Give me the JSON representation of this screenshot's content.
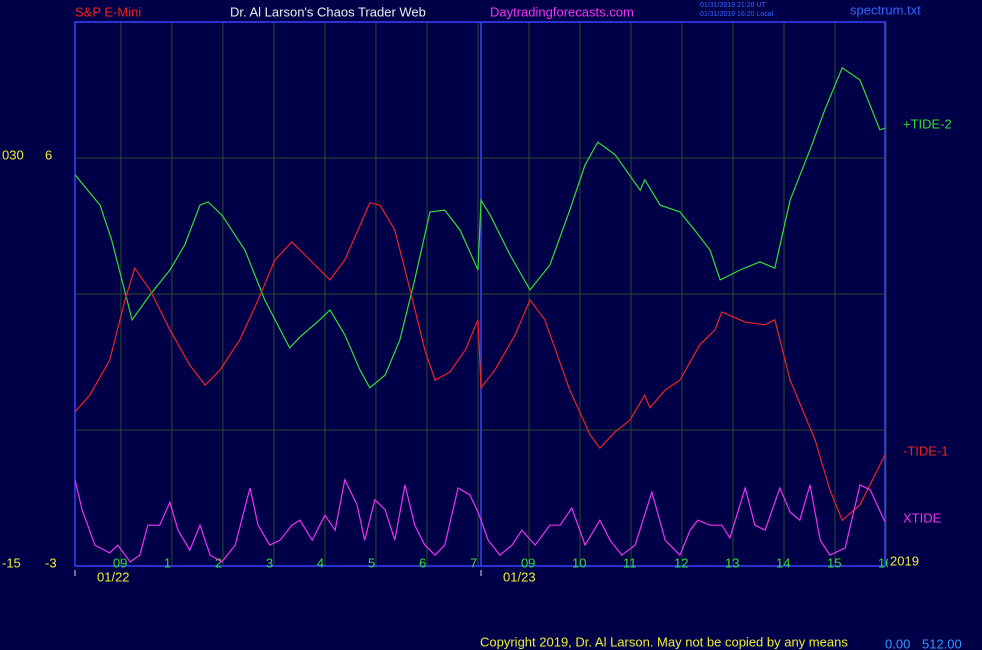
{
  "chart_data": {
    "type": "line",
    "instrument": "S&P E-Mini",
    "title": "Dr. Al Larson's Chaos Trader Web",
    "website": "Daytradingforecasts.com",
    "timestamps": [
      "01/31/2019 21:20 UT",
      "01/31/2019 16:20 Local"
    ],
    "file": "spectrum.txt",
    "year": "2019",
    "copyright": "Copyright 2019, Dr. Al Larson. May not be copied by any means",
    "corner_values": [
      "0.00",
      "512.00"
    ],
    "xlim": [
      -0.9,
      14.98
    ],
    "xticks": [
      {
        "value": 0,
        "label": "09"
      },
      1,
      2,
      3,
      4,
      5,
      6,
      7,
      {
        "value": 8,
        "label": "09"
      },
      {
        "value": 9,
        "label": "10"
      },
      {
        "value": 10,
        "label": "11"
      },
      {
        "value": 11,
        "label": "12"
      },
      {
        "value": 12,
        "label": "13"
      },
      {
        "value": 13,
        "label": "14"
      },
      {
        "value": 14,
        "label": "15"
      },
      {
        "value": 15,
        "label": "16"
      }
    ],
    "xtick_labels_offset_hours": 9,
    "dates": [
      {
        "value": -0.9,
        "label": "01/22"
      },
      {
        "value": 7.06,
        "label": "01/23"
      }
    ],
    "ylim": [
      -3,
      9
    ],
    "yticks": [
      6,
      -3
    ],
    "ygrid": [
      6,
      3,
      0
    ],
    "y2lim": [
      -15,
      45
    ],
    "y2ticks": [
      {
        "value": 30,
        "label": "030"
      },
      -15
    ],
    "grid": true,
    "series": [
      {
        "name": "+TIDE-2",
        "color": "#33dd33",
        "x": [
          -0.9,
          -0.41,
          -0.18,
          0.02,
          0.22,
          0.57,
          0.96,
          1.25,
          1.55,
          1.71,
          1.98,
          2.43,
          2.82,
          3.31,
          3.51,
          3.9,
          4.1,
          4.39,
          4.69,
          4.88,
          5.18,
          5.47,
          5.76,
          6.06,
          6.35,
          6.65,
          7.0,
          7.06,
          7.24,
          7.63,
          8.02,
          8.41,
          8.8,
          9.1,
          9.35,
          9.69,
          10.18,
          10.27,
          10.57,
          10.96,
          11.25,
          11.55,
          11.75,
          12.14,
          12.53,
          12.82,
          13.12,
          13.51,
          13.8,
          14.14,
          14.49,
          14.88,
          14.98
        ],
        "values": [
          5.63,
          4.96,
          4.19,
          3.31,
          2.43,
          2.98,
          3.53,
          4.08,
          4.96,
          5.03,
          4.74,
          3.97,
          2.87,
          1.81,
          2.05,
          2.43,
          2.65,
          2.1,
          1.32,
          0.93,
          1.21,
          1.99,
          3.31,
          4.81,
          4.85,
          4.41,
          3.53,
          5.07,
          4.74,
          3.86,
          3.09,
          3.64,
          4.85,
          5.85,
          6.35,
          6.07,
          5.29,
          5.52,
          4.96,
          4.81,
          4.41,
          3.97,
          3.31,
          3.53,
          3.71,
          3.57,
          5.07,
          6.18,
          7.06,
          7.99,
          7.72,
          6.62,
          6.66
        ]
      },
      {
        "name": "-TIDE-1",
        "color": "#ee2222",
        "x": [
          -0.9,
          -0.61,
          -0.22,
          0.08,
          0.27,
          0.57,
          0.96,
          1.35,
          1.65,
          1.94,
          2.33,
          2.69,
          3.02,
          3.35,
          3.61,
          4.1,
          4.39,
          4.69,
          4.88,
          5.08,
          5.37,
          5.67,
          5.96,
          6.16,
          6.45,
          6.75,
          7.0,
          7.06,
          7.33,
          7.73,
          8.02,
          8.31,
          8.8,
          9.2,
          9.39,
          9.69,
          9.98,
          10.27,
          10.37,
          10.67,
          10.96,
          11.35,
          11.65,
          11.78,
          12.24,
          12.63,
          12.82,
          13.12,
          13.61,
          13.9,
          14.14,
          14.49,
          14.98
        ],
        "values": [
          0.4,
          0.77,
          1.54,
          2.87,
          3.57,
          3.09,
          2.21,
          1.43,
          0.99,
          1.32,
          1.99,
          2.87,
          3.75,
          4.15,
          3.86,
          3.31,
          3.75,
          4.52,
          5.01,
          4.96,
          4.41,
          3.09,
          1.76,
          1.1,
          1.28,
          1.76,
          2.43,
          0.93,
          1.32,
          2.1,
          2.87,
          2.43,
          0.88,
          -0.11,
          -0.4,
          -0.04,
          0.22,
          0.77,
          0.49,
          0.88,
          1.1,
          1.88,
          2.21,
          2.6,
          2.38,
          2.32,
          2.43,
          1.1,
          -0.22,
          -1.32,
          -1.99,
          -1.65,
          -0.55
        ]
      },
      {
        "name": "XTIDE",
        "color": "#ee33ee",
        "x": [
          -0.9,
          -0.76,
          -0.51,
          -0.22,
          -0.06,
          0.18,
          0.37,
          0.53,
          0.76,
          0.96,
          1.12,
          1.35,
          1.55,
          1.75,
          1.98,
          2.24,
          2.53,
          2.69,
          2.92,
          3.12,
          3.35,
          3.51,
          3.75,
          4.0,
          4.2,
          4.39,
          4.63,
          4.78,
          4.98,
          5.18,
          5.37,
          5.57,
          5.76,
          5.96,
          6.16,
          6.35,
          6.61,
          6.84,
          7.0,
          7.2,
          7.43,
          7.67,
          7.86,
          8.12,
          8.41,
          8.61,
          8.84,
          9.1,
          9.39,
          9.59,
          9.82,
          10.08,
          10.41,
          10.67,
          10.96,
          11.16,
          11.31,
          11.55,
          11.78,
          11.94,
          12.24,
          12.43,
          12.63,
          12.92,
          13.12,
          13.31,
          13.51,
          13.71,
          13.9,
          14.2,
          14.49,
          14.69,
          14.98
        ],
        "values": [
          -1.1,
          -1.76,
          -2.54,
          -2.71,
          -2.54,
          -2.91,
          -2.76,
          -2.1,
          -2.1,
          -1.59,
          -2.21,
          -2.65,
          -2.1,
          -2.76,
          -2.91,
          -2.54,
          -1.28,
          -2.1,
          -2.54,
          -2.43,
          -2.1,
          -1.99,
          -2.43,
          -1.88,
          -2.21,
          -1.1,
          -1.65,
          -2.43,
          -1.54,
          -1.76,
          -2.43,
          -1.21,
          -2.1,
          -2.54,
          -2.76,
          -2.54,
          -1.28,
          -1.43,
          -1.81,
          -2.43,
          -2.76,
          -2.54,
          -2.21,
          -2.54,
          -2.1,
          -2.1,
          -1.72,
          -2.54,
          -1.99,
          -2.43,
          -2.76,
          -2.54,
          -1.37,
          -2.43,
          -2.76,
          -2.21,
          -1.99,
          -2.1,
          -2.1,
          -2.38,
          -1.28,
          -2.1,
          -2.21,
          -1.28,
          -1.81,
          -1.99,
          -1.21,
          -2.43,
          -2.76,
          -2.6,
          -1.21,
          -1.32,
          -2.03
        ]
      }
    ]
  }
}
